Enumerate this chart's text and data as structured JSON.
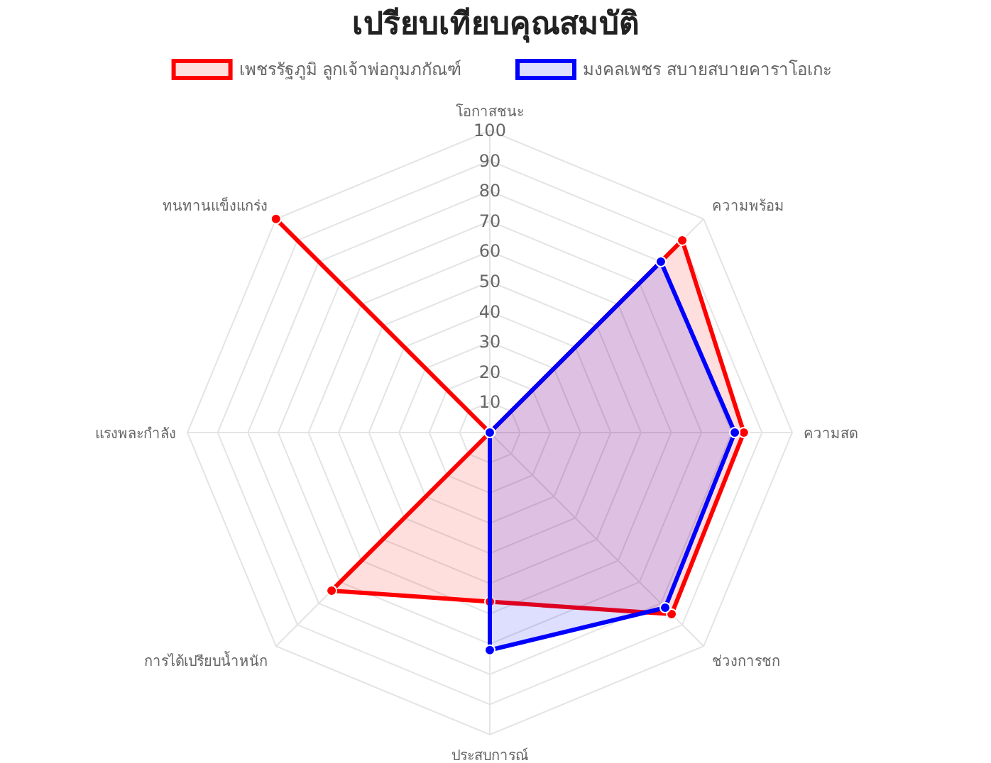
{
  "chart_data": {
    "type": "radar",
    "title": "เปรียบเทียบคุณสมบัติ",
    "categories": [
      "โอกาสชนะ",
      "ความพร้อม",
      "ความสด",
      "ช่วงการชก",
      "ประสบการณ์",
      "การได้เปรียบน้ำหนัก",
      "แรงพละกำลัง",
      "ทนทานแข็งแกร่ง"
    ],
    "series": [
      {
        "name": "เพชรรัฐภูมิ ลูกเจ้าพ่อกุมภกัณฑ์",
        "color": "#ff0000",
        "values": [
          0,
          90,
          84,
          85,
          56,
          74,
          0,
          100
        ]
      },
      {
        "name": "มงคลเพชร สบายสบายคาราโอเกะ",
        "color": "#0000ff",
        "values": [
          0,
          80,
          81,
          82,
          72,
          0,
          0,
          0
        ]
      }
    ],
    "ylim": [
      0,
      100
    ],
    "yticks": [
      10,
      20,
      30,
      40,
      50,
      60,
      70,
      80,
      90,
      100
    ],
    "grid": true,
    "legend": "top",
    "marker": "circle"
  }
}
